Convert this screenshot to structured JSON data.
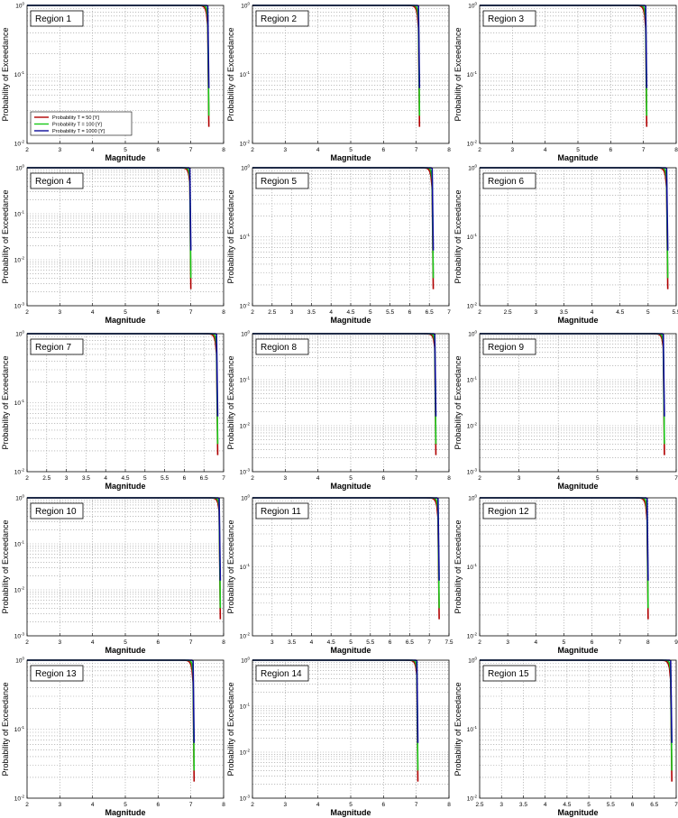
{
  "chart_data": [
    {
      "type": "line",
      "title": "Region 1",
      "ylabel": "Probability of Exceedance",
      "xlabel": "Magnitude",
      "xlim": [
        2,
        8
      ],
      "xticks": [
        2,
        3,
        4,
        5,
        6,
        7,
        8
      ],
      "ylog": true,
      "ylim": [
        0.01,
        1
      ],
      "mmax": 7.55,
      "legend": {
        "placement": "center-left",
        "entries": [
          "Probability T = 50 [Y]",
          "Probability T = 100 [Y]",
          "Probability T = 1000 [Y]"
        ]
      }
    },
    {
      "type": "line",
      "title": "Region 2",
      "ylabel": "Probability of Exceedance",
      "xlabel": "Magnitude",
      "xlim": [
        2,
        8
      ],
      "xticks": [
        2,
        3,
        4,
        5,
        6,
        7,
        8
      ],
      "ylog": true,
      "ylim": [
        0.01,
        1
      ],
      "mmax": 7.1
    },
    {
      "type": "line",
      "title": "Region 3",
      "ylabel": "Probability of Exceedance",
      "xlabel": "Magnitude",
      "xlim": [
        2,
        8
      ],
      "xticks": [
        2,
        3,
        4,
        5,
        6,
        7,
        8
      ],
      "ylog": true,
      "ylim": [
        0.01,
        1
      ],
      "mmax": 7.1
    },
    {
      "type": "line",
      "title": "Region 4",
      "ylabel": "Probability of Exceedance",
      "xlabel": "Magnitude",
      "xlim": [
        2,
        8
      ],
      "xticks": [
        2,
        3,
        4,
        5,
        6,
        7,
        8
      ],
      "ylog": true,
      "ylim": [
        0.001,
        1
      ],
      "mmax": 7.0
    },
    {
      "type": "line",
      "title": "Region 5",
      "ylabel": "Probability of Exceedance",
      "xlabel": "Magnitude",
      "xlim": [
        2,
        7
      ],
      "xticks": [
        2,
        2.5,
        3,
        3.5,
        4,
        4.5,
        5,
        5.5,
        6,
        6.5,
        7
      ],
      "ylog": true,
      "ylim": [
        0.01,
        1
      ],
      "mmax": 6.6
    },
    {
      "type": "line",
      "title": "Region 6",
      "ylabel": "Probability of Exceedance",
      "xlabel": "Magnitude",
      "xlim": [
        2,
        5.5
      ],
      "xticks": [
        2,
        2.5,
        3,
        3.5,
        4,
        4.5,
        5,
        5.5
      ],
      "ylog": true,
      "ylim": [
        0.01,
        1
      ],
      "mmax": 5.35
    },
    {
      "type": "line",
      "title": "Region 7",
      "ylabel": "Probability of Exceedance",
      "xlabel": "Magnitude",
      "xlim": [
        2,
        7
      ],
      "xticks": [
        2,
        2.5,
        3,
        3.5,
        4,
        4.5,
        5,
        5.5,
        6,
        6.5,
        7
      ],
      "ylog": true,
      "ylim": [
        0.01,
        1
      ],
      "mmax": 6.85
    },
    {
      "type": "line",
      "title": "Region 8",
      "ylabel": "Probability of Exceedance",
      "xlabel": "Magnitude",
      "xlim": [
        2,
        8
      ],
      "xticks": [
        2,
        3,
        4,
        5,
        6,
        7,
        8
      ],
      "ylog": true,
      "ylim": [
        0.001,
        1
      ],
      "mmax": 7.6
    },
    {
      "type": "line",
      "title": "Region 9",
      "ylabel": "Probability of Exceedance",
      "xlabel": "Magnitude",
      "xlim": [
        2,
        7
      ],
      "xticks": [
        2,
        3,
        4,
        5,
        6,
        7
      ],
      "ylog": true,
      "ylim": [
        0.001,
        1
      ],
      "mmax": 6.7
    },
    {
      "type": "line",
      "title": "Region 10",
      "ylabel": "Probability of Exceedance",
      "xlabel": "Magnitude",
      "xlim": [
        2,
        8
      ],
      "xticks": [
        2,
        3,
        4,
        5,
        6,
        7,
        8
      ],
      "ylog": true,
      "ylim": [
        0.001,
        1
      ],
      "mmax": 7.9
    },
    {
      "type": "line",
      "title": "Region 11",
      "ylabel": "Probability of Exceedance",
      "xlabel": "Magnitude",
      "xlim": [
        2.5,
        7.5
      ],
      "xticks": [
        3,
        3.5,
        4,
        4.5,
        5,
        5.5,
        6,
        6.5,
        7,
        7.5
      ],
      "ylog": true,
      "ylim": [
        0.01,
        1
      ],
      "mmax": 7.25
    },
    {
      "type": "line",
      "title": "Region 12",
      "ylabel": "Probability of Exceedance",
      "xlabel": "Magnitude",
      "xlim": [
        2,
        9
      ],
      "xticks": [
        2,
        3,
        4,
        5,
        6,
        7,
        8,
        9
      ],
      "ylog": true,
      "ylim": [
        0.01,
        1
      ],
      "mmax": 8.0
    },
    {
      "type": "line",
      "title": "Region 13",
      "ylabel": "Probability of Exceedance",
      "xlabel": "Magnitude",
      "xlim": [
        2,
        8
      ],
      "xticks": [
        2,
        3,
        4,
        5,
        6,
        7,
        8
      ],
      "ylog": true,
      "ylim": [
        0.01,
        1
      ],
      "mmax": 7.1
    },
    {
      "type": "line",
      "title": "Region 14",
      "ylabel": "Probability of Exceedance",
      "xlabel": "Magnitude",
      "xlim": [
        2,
        8
      ],
      "xticks": [
        2,
        3,
        4,
        5,
        6,
        7,
        8
      ],
      "ylog": true,
      "ylim": [
        0.001,
        1
      ],
      "mmax": 7.05
    },
    {
      "type": "line",
      "title": "Region 15",
      "ylabel": "Probability of Exceedance",
      "xlabel": "Magnitude",
      "xlim": [
        2.5,
        7
      ],
      "xticks": [
        2.5,
        3,
        3.5,
        4,
        4.5,
        5,
        5.5,
        6,
        6.5,
        7
      ],
      "ylog": true,
      "ylim": [
        0.01,
        1
      ],
      "mmax": 6.9
    }
  ],
  "series_colors": [
    "#b00000",
    "#18c818",
    "#0a0a9a"
  ]
}
